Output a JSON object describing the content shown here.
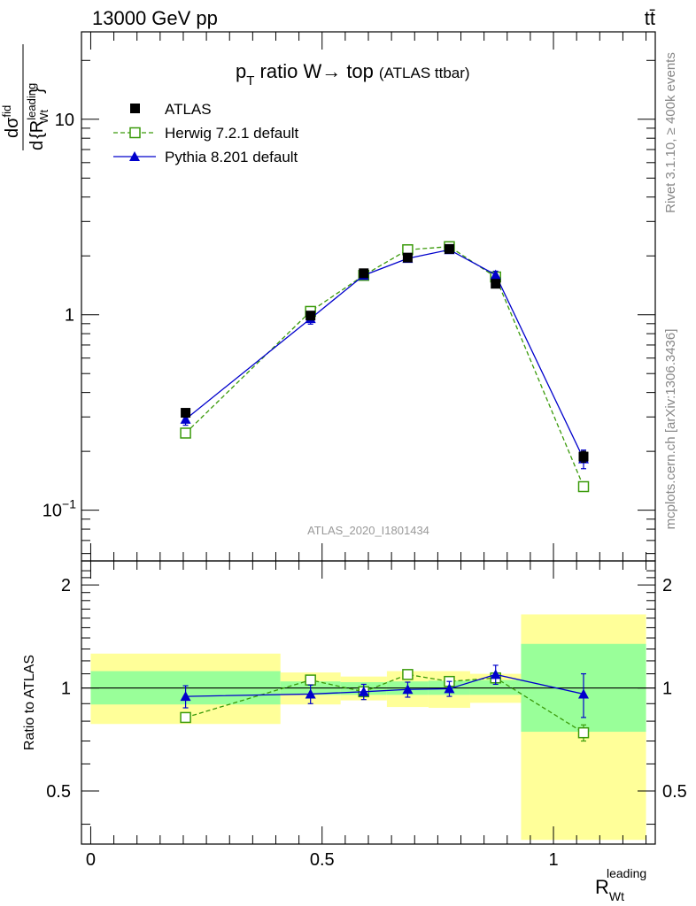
{
  "header": {
    "left": "13000 GeV pp",
    "right": "tt̄"
  },
  "side_labels": {
    "rivet": "Rivet 3.1.10, ≥ 400k events",
    "mcplots": "mcplots.cern.ch [arXiv:1306.3436]"
  },
  "chart_data": {
    "type": "line",
    "title": {
      "main": "p",
      "sub": "T",
      "rest": " ratio W→ top",
      "tag": "(ATLAS ttbar)"
    },
    "watermark": "ATLAS_2020_I1801434",
    "xlabel": {
      "main": "R",
      "sub": "Wt",
      "sup": "leading"
    },
    "ylabel_main": {
      "p1": "d",
      "p2": "d",
      "p3": "{R",
      "p4": "}",
      "frac_sigma": "σ",
      "leading": "leading",
      "wt": "Wt",
      "fid": "fid"
    },
    "ylabel_ratio": "Ratio to ATLAS",
    "xlim": [
      -0.02,
      1.22
    ],
    "main_ylim": [
      0.055,
      28
    ],
    "main_yscale": "log",
    "main_yticks": [
      {
        "value": 0.1,
        "label": "10",
        "exp": "−1"
      },
      {
        "value": 1,
        "label": "1",
        "exp": ""
      },
      {
        "value": 10,
        "label": "10",
        "exp": ""
      }
    ],
    "ratio_ylim": [
      0.35,
      2.35
    ],
    "ratio_yscale": "log",
    "ratio_yticks": [
      {
        "value": 0.5,
        "label": "0.5"
      },
      {
        "value": 1,
        "label": "1"
      },
      {
        "value": 2,
        "label": "2"
      }
    ],
    "xticks": [
      {
        "value": 0,
        "label": "0"
      },
      {
        "value": 0.5,
        "label": "0.5"
      },
      {
        "value": 1,
        "label": "1"
      }
    ],
    "bins": [
      {
        "lo": 0.0,
        "hi": 0.41
      },
      {
        "lo": 0.41,
        "hi": 0.54
      },
      {
        "lo": 0.54,
        "hi": 0.64
      },
      {
        "lo": 0.64,
        "hi": 0.73
      },
      {
        "lo": 0.73,
        "hi": 0.82
      },
      {
        "lo": 0.82,
        "hi": 0.93
      },
      {
        "lo": 0.93,
        "hi": 1.2
      }
    ],
    "x": [
      0.205,
      0.475,
      0.59,
      0.685,
      0.775,
      0.875,
      1.065
    ],
    "series": [
      {
        "name": "ATLAS",
        "style": "marker-square",
        "color": "#000000",
        "values": [
          0.315,
          0.99,
          1.63,
          1.96,
          2.17,
          1.44,
          0.188
        ],
        "errors": [
          0.01,
          0.02,
          0.03,
          0.03,
          0.04,
          0.03,
          0.012
        ]
      },
      {
        "name": "Herwig 7.2.1 default",
        "style": "dashed-open-square",
        "color": "#3a9a0a",
        "values": [
          0.248,
          1.04,
          1.59,
          2.15,
          2.23,
          1.56,
          0.132
        ],
        "errors": [
          0.006,
          0.02,
          0.03,
          0.04,
          0.04,
          0.04,
          0.007
        ],
        "ratio": [
          0.82,
          1.055,
          0.975,
          1.095,
          1.045,
          1.07,
          0.74
        ],
        "ratio_errors": [
          0.02,
          0.015,
          0.02,
          0.02,
          0.02,
          0.03,
          0.04
        ]
      },
      {
        "name": "Pythia 8.201 default",
        "style": "solid-triangle",
        "color": "#0000cc",
        "values": [
          0.292,
          0.955,
          1.59,
          1.94,
          2.15,
          1.6,
          0.183
        ],
        "errors": [
          0.02,
          0.06,
          0.06,
          0.06,
          0.07,
          0.07,
          0.02
        ],
        "ratio": [
          0.945,
          0.96,
          0.975,
          0.99,
          0.995,
          1.095,
          0.96
        ],
        "ratio_errors": [
          0.07,
          0.06,
          0.05,
          0.05,
          0.05,
          0.07,
          0.14
        ]
      }
    ],
    "ratio_bands": {
      "green_color": "#99ff99",
      "yellow_color": "#ffff99",
      "green": [
        [
          0.895,
          1.12
        ],
        [
          0.955,
          1.045
        ],
        [
          0.955,
          1.04
        ],
        [
          0.955,
          1.045
        ],
        [
          0.955,
          1.05
        ],
        [
          0.955,
          1.055
        ],
        [
          0.745,
          1.345
        ]
      ],
      "yellow": [
        [
          0.785,
          1.26
        ],
        [
          0.895,
          1.11
        ],
        [
          0.92,
          1.08
        ],
        [
          0.88,
          1.12
        ],
        [
          0.875,
          1.12
        ],
        [
          0.905,
          1.1
        ],
        [
          0.36,
          1.64
        ]
      ]
    }
  }
}
